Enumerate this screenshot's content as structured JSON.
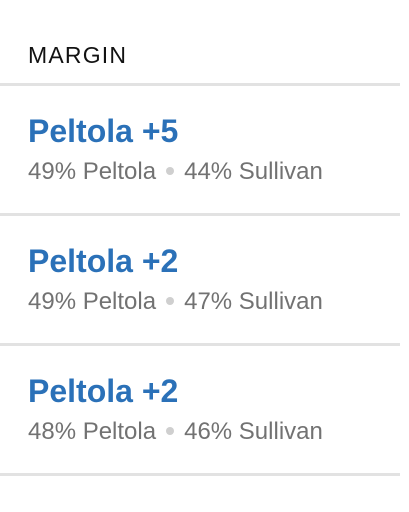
{
  "header": {
    "label": "MARGIN"
  },
  "rows": [
    {
      "margin": "Peltola +5",
      "candidate_a": "49% Peltola",
      "candidate_b": "44% Sullivan"
    },
    {
      "margin": "Peltola +2",
      "candidate_a": "49% Peltola",
      "candidate_b": "47% Sullivan"
    },
    {
      "margin": "Peltola +2",
      "candidate_a": "48% Peltola",
      "candidate_b": "46% Sullivan"
    }
  ],
  "colors": {
    "accent": "#2b71b8",
    "secondary_text": "#727272",
    "divider": "#e2e2e2",
    "separator_dot": "#cfcfcf"
  }
}
